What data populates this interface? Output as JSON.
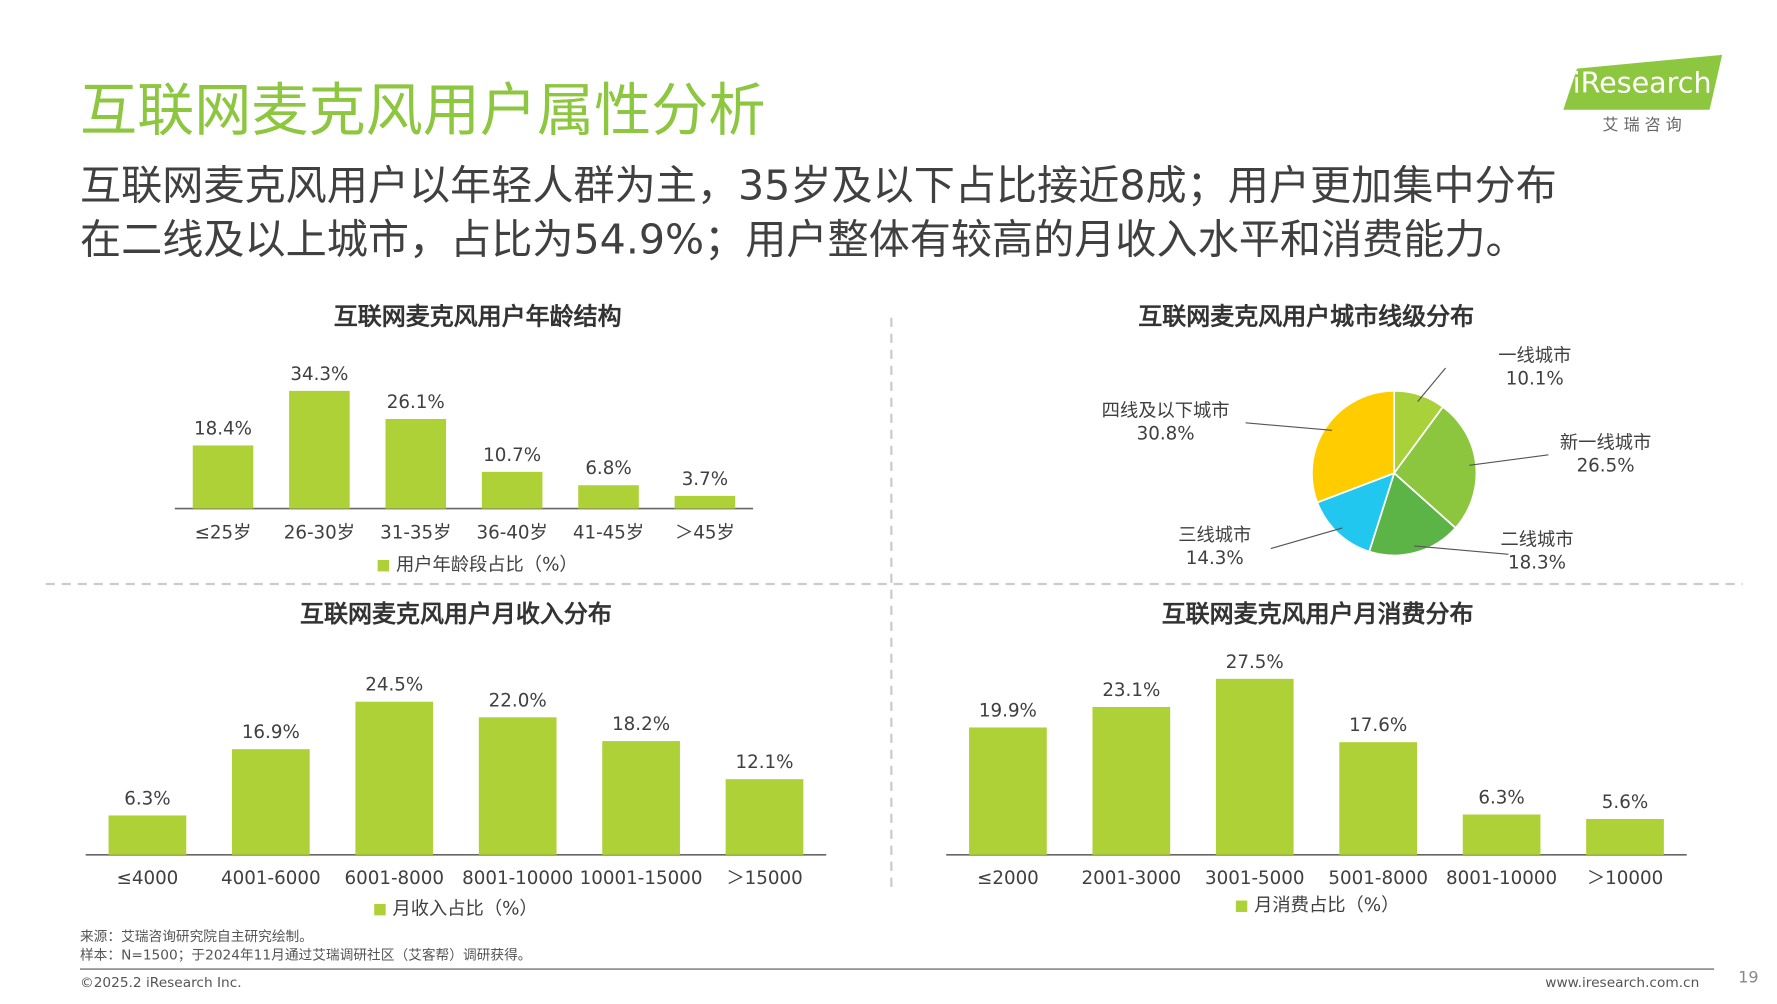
{
  "header": {
    "title": "互联网麦克风用户属性分析",
    "subtitle": [
      "互联网麦克风用户以年轻人群为主，35岁及以下占比接近8成；用户更加集中分布",
      "在二线及以上城市，占比为54.9%；用户整体有较高的月收入水平和消费能力。"
    ]
  },
  "logo": {
    "brand": "iResearch",
    "cn": "艾 瑞 咨 询"
  },
  "chart_data": [
    {
      "type": "bar",
      "title": "互联网麦克风用户年龄结构",
      "categories": [
        "≤25岁",
        "26-30岁",
        "31-35岁",
        "36-40岁",
        "41-45岁",
        "＞45岁"
      ],
      "series": [
        {
          "name": "用户年龄段占比（%）",
          "color": "#add136",
          "values": [
            18.4,
            34.3,
            26.1,
            10.7,
            6.8,
            3.7
          ],
          "value_labels": [
            "18.4%",
            "34.3%",
            "26.1%",
            "10.7%",
            "6.8%",
            "3.7%"
          ]
        }
      ]
    },
    {
      "type": "pie",
      "title": "互联网麦克风用户城市线级分布",
      "categories": [
        "一线城市",
        "新一线城市",
        "二线城市",
        "三线城市",
        "四线及以下城市"
      ],
      "values": [
        10.1,
        26.5,
        18.3,
        14.3,
        30.8
      ],
      "value_labels": [
        "10.1%",
        "26.5%",
        "18.3%",
        "14.3%",
        "30.8%"
      ],
      "colors": [
        "#a8d13a",
        "#8cc63f",
        "#5db446",
        "#22c7ef",
        "#ffcc00"
      ]
    },
    {
      "type": "bar",
      "title": "互联网麦克风用户月收入分布",
      "categories": [
        "≤4000",
        "4001-6000",
        "6001-8000",
        "8001-10000",
        "10001-15000",
        "＞15000"
      ],
      "series": [
        {
          "name": "月收入占比（%）",
          "color": "#add136",
          "values": [
            6.3,
            16.9,
            24.5,
            22.0,
            18.2,
            12.1
          ],
          "value_labels": [
            "6.3%",
            "16.9%",
            "24.5%",
            "22.0%",
            "18.2%",
            "12.1%"
          ]
        }
      ]
    },
    {
      "type": "bar",
      "title": "互联网麦克风用户月消费分布",
      "categories": [
        "≤2000",
        "2001-3000",
        "3001-5000",
        "5001-8000",
        "8001-10000",
        "＞10000"
      ],
      "series": [
        {
          "name": "月消费占比（%）",
          "color": "#add136",
          "values": [
            19.9,
            23.1,
            27.5,
            17.6,
            6.3,
            5.6
          ],
          "value_labels": [
            "19.9%",
            "23.1%",
            "27.5%",
            "17.6%",
            "6.3%",
            "5.6%"
          ]
        }
      ]
    }
  ],
  "footer": {
    "source": "来源：艾瑞咨询研究院自主研究绘制。",
    "sample": "样本：N=1500；于2024年11月通过艾瑞调研社区（艾客帮）调研获得。",
    "copyright": "©2025.2 iResearch Inc.",
    "website": "www.iresearch.com.cn",
    "page": "19"
  }
}
